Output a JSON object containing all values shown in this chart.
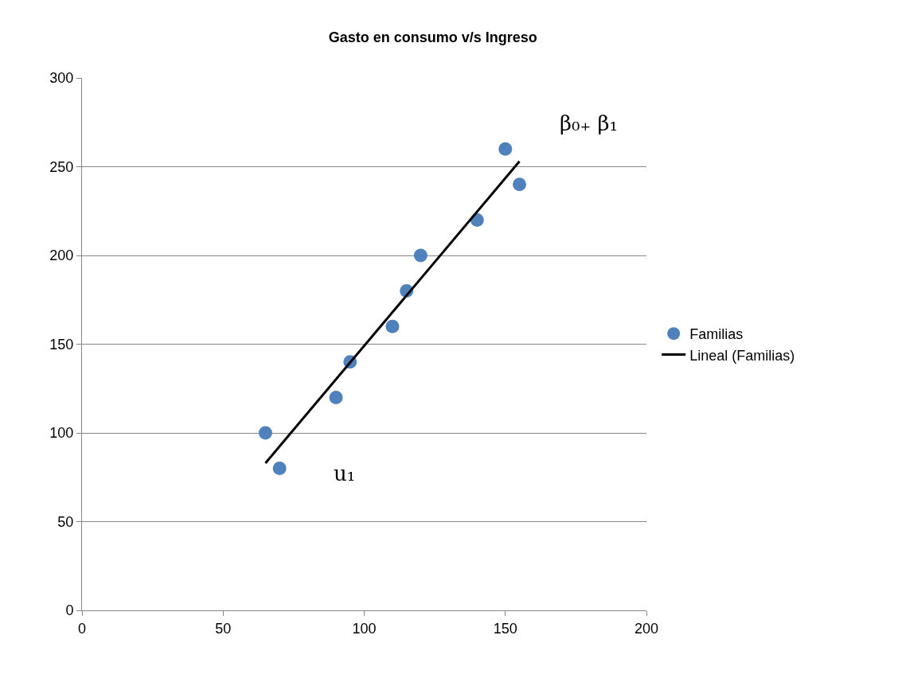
{
  "chart_data": {
    "type": "scatter",
    "title": "Gasto en consumo v/s Ingreso",
    "series": [
      {
        "name": "Familias",
        "color": "#4f81bd",
        "marker": "circle",
        "x": [
          65,
          70,
          90,
          95,
          110,
          115,
          120,
          140,
          150,
          155
        ],
        "values": [
          100,
          80,
          120,
          140,
          160,
          180,
          200,
          220,
          260,
          240
        ]
      },
      {
        "name": "Lineal (Familias)",
        "type": "line",
        "color": "#000000",
        "marker": "none",
        "line_style": "solid",
        "x": [
          65,
          155
        ],
        "values": [
          83,
          253
        ]
      }
    ],
    "xlim": [
      0,
      200
    ],
    "xticks": [
      0,
      50,
      100,
      150,
      200
    ],
    "ylim": [
      0,
      300
    ],
    "yticks": [
      0,
      50,
      100,
      150,
      200,
      250,
      300
    ],
    "grid": "y",
    "legend": "right",
    "annotations": [
      "β₀₊ β₁",
      "u₁"
    ]
  }
}
